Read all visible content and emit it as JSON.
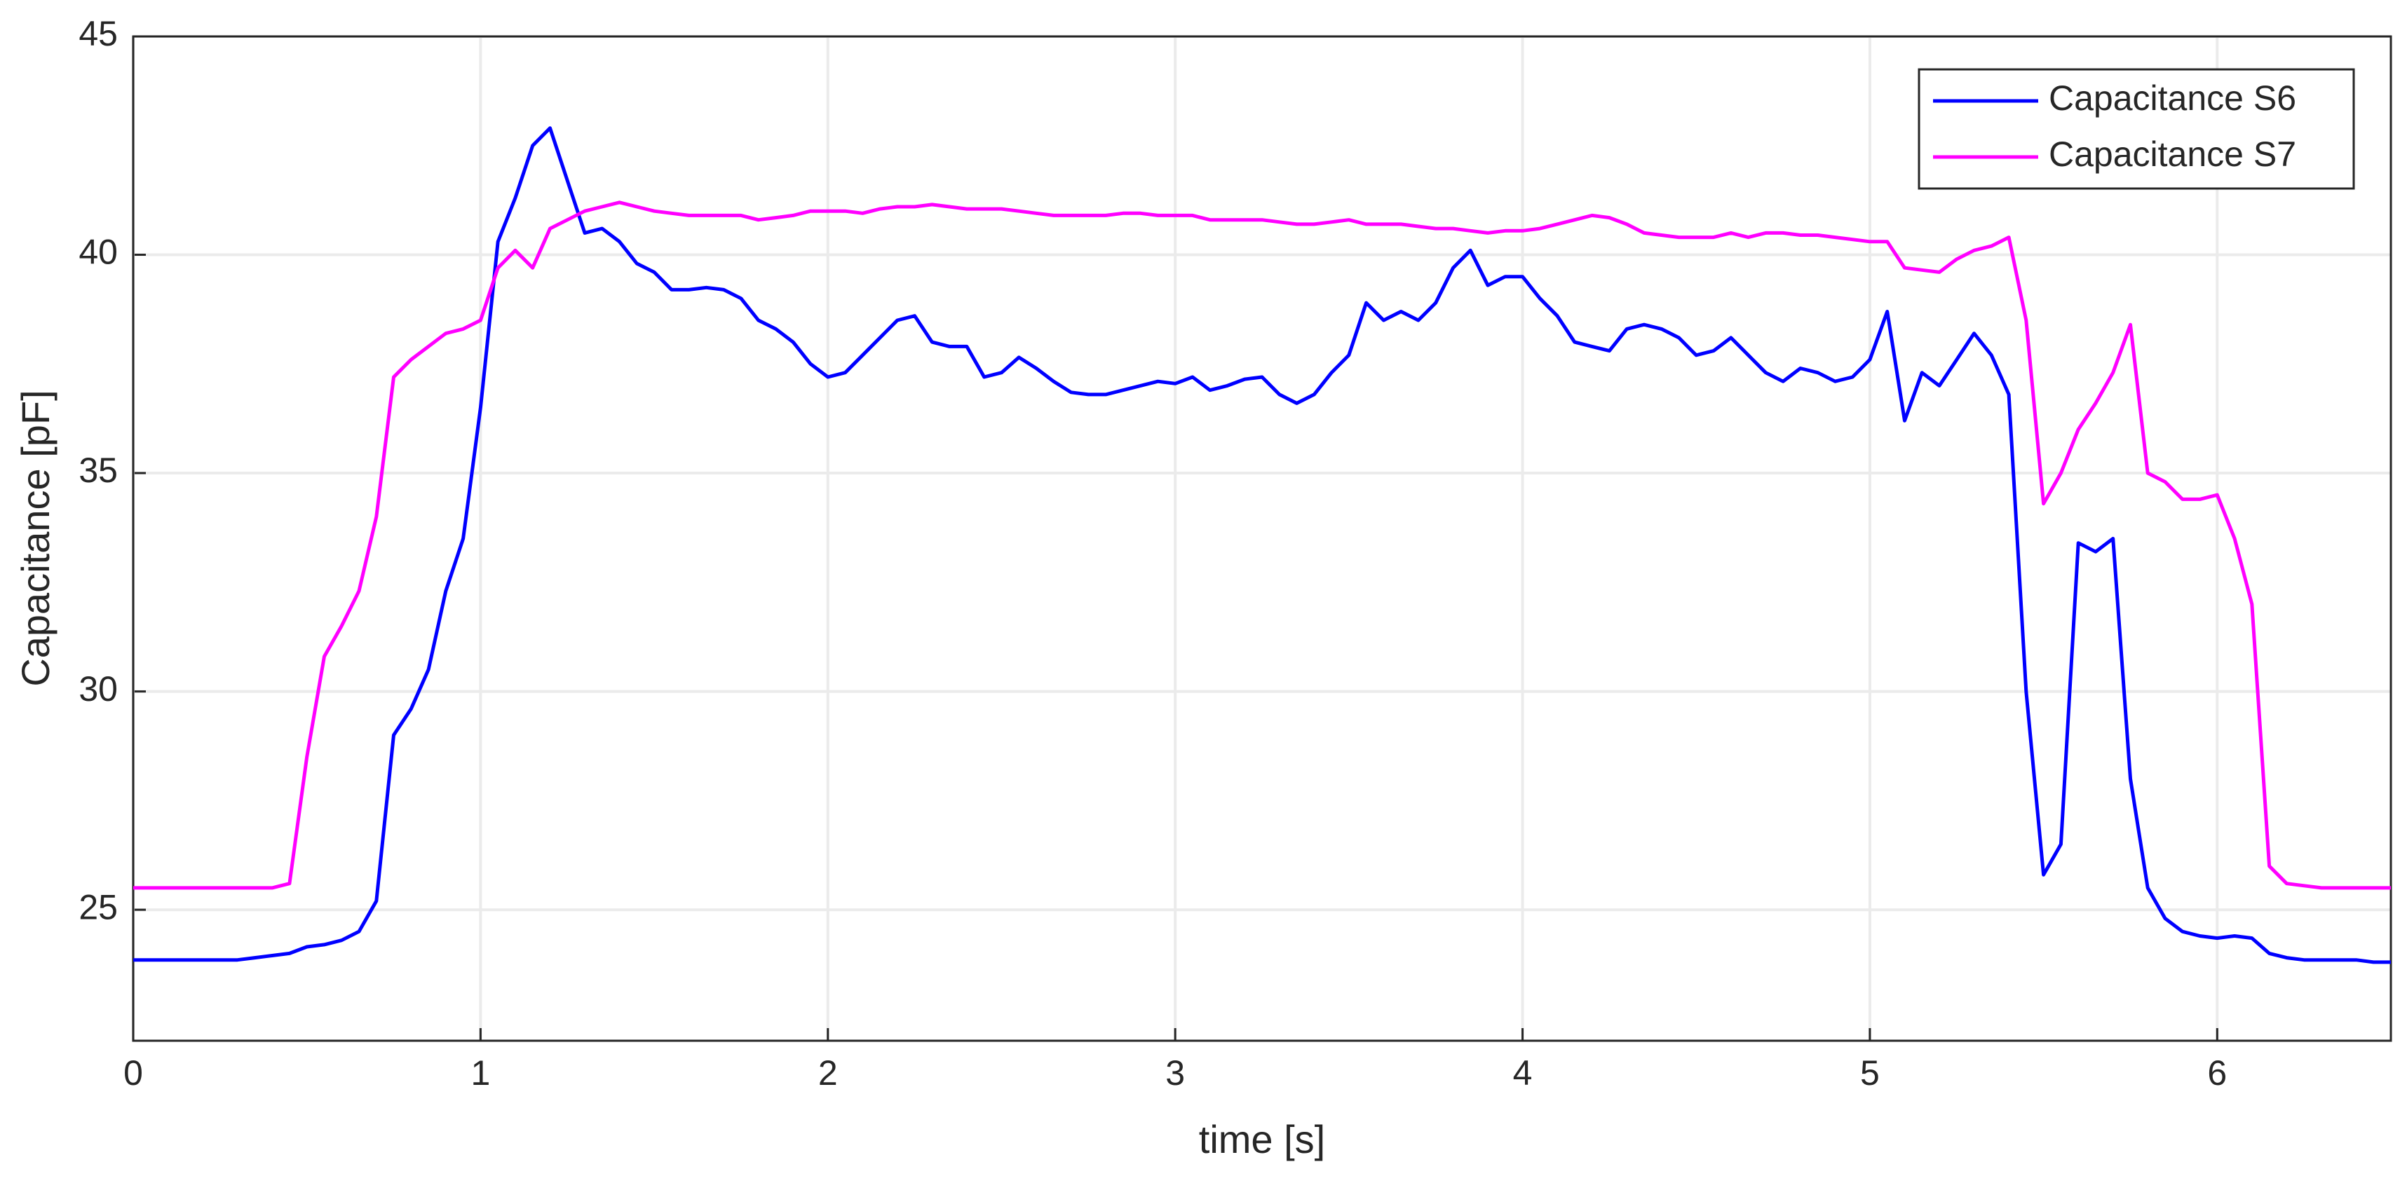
{
  "chart_data": {
    "type": "line",
    "xlabel": "time [s]",
    "ylabel": "Capacitance [pF]",
    "xlim": [
      0,
      6.5
    ],
    "ylim": [
      22,
      45
    ],
    "xticks": [
      0,
      1,
      2,
      3,
      4,
      5,
      6
    ],
    "yticks": [
      25,
      30,
      35,
      40,
      45
    ],
    "grid": true,
    "legend": "upper right",
    "x": [
      0,
      0.05,
      0.1,
      0.15,
      0.2,
      0.25,
      0.3,
      0.35,
      0.4,
      0.45,
      0.5,
      0.55,
      0.6,
      0.65,
      0.7,
      0.75,
      0.8,
      0.85,
      0.9,
      0.95,
      1,
      1.05,
      1.1,
      1.15,
      1.2,
      1.25,
      1.3,
      1.35,
      1.4,
      1.45,
      1.5,
      1.55,
      1.6,
      1.65,
      1.7,
      1.75,
      1.8,
      1.85,
      1.9,
      1.95,
      2,
      2.05,
      2.1,
      2.15,
      2.2,
      2.25,
      2.3,
      2.35,
      2.4,
      2.45,
      2.5,
      2.55,
      2.6,
      2.65,
      2.7,
      2.75,
      2.8,
      2.85,
      2.9,
      2.95,
      3,
      3.05,
      3.1,
      3.15,
      3.2,
      3.25,
      3.3,
      3.35,
      3.4,
      3.45,
      3.5,
      3.55,
      3.6,
      3.65,
      3.7,
      3.75,
      3.8,
      3.85,
      3.9,
      3.95,
      4,
      4.05,
      4.1,
      4.15,
      4.2,
      4.25,
      4.3,
      4.35,
      4.4,
      4.45,
      4.5,
      4.55,
      4.6,
      4.65,
      4.7,
      4.75,
      4.8,
      4.85,
      4.9,
      4.95,
      5,
      5.05,
      5.1,
      5.15,
      5.2,
      5.25,
      5.3,
      5.35,
      5.4,
      5.45,
      5.5,
      5.55,
      5.6,
      5.65,
      5.7,
      5.75,
      5.8,
      5.85,
      5.9,
      5.95,
      6,
      6.05,
      6.1,
      6.15,
      6.2,
      6.25,
      6.3,
      6.35,
      6.4,
      6.45,
      6.5
    ],
    "series": [
      {
        "name": "Capacitance S6",
        "color": "#0000ff",
        "values": [
          23.85,
          23.85,
          23.85,
          23.85,
          23.85,
          23.85,
          23.85,
          23.9,
          23.95,
          24.0,
          24.15,
          24.2,
          24.3,
          24.5,
          25.2,
          29.0,
          29.6,
          30.5,
          32.3,
          33.5,
          36.5,
          40.3,
          41.3,
          42.5,
          42.9,
          41.7,
          40.5,
          40.6,
          40.3,
          39.8,
          39.6,
          39.2,
          39.2,
          39.25,
          39.2,
          39.0,
          38.5,
          38.3,
          38.0,
          37.5,
          37.2,
          37.3,
          37.7,
          38.1,
          38.5,
          38.6,
          38.0,
          37.9,
          37.9,
          37.2,
          37.3,
          37.65,
          37.4,
          37.1,
          36.85,
          36.8,
          36.8,
          36.9,
          37.0,
          37.1,
          37.05,
          37.2,
          36.9,
          37.0,
          37.15,
          37.2,
          36.8,
          36.6,
          36.8,
          37.3,
          37.7,
          38.9,
          38.5,
          38.7,
          38.5,
          38.9,
          39.7,
          40.1,
          39.3,
          39.5,
          39.5,
          39.0,
          38.6,
          38.0,
          37.9,
          37.8,
          38.3,
          38.4,
          38.3,
          38.1,
          37.7,
          37.8,
          38.1,
          37.7,
          37.3,
          37.1,
          37.4,
          37.3,
          37.1,
          37.2,
          37.6,
          38.7,
          36.2,
          37.3,
          37.0,
          37.6,
          38.2,
          37.7,
          36.8,
          30.0,
          25.8,
          26.5,
          33.4,
          33.2,
          33.5,
          28.0,
          25.5,
          24.8,
          24.5,
          24.4,
          24.35,
          24.4,
          24.35,
          24.0,
          23.9,
          23.85,
          23.85,
          23.85,
          23.85,
          23.8,
          23.8
        ]
      },
      {
        "name": "Capacitance S7",
        "color": "#ff00ff",
        "values": [
          25.5,
          25.5,
          25.5,
          25.5,
          25.5,
          25.5,
          25.5,
          25.5,
          25.5,
          25.6,
          28.5,
          30.8,
          31.5,
          32.3,
          34.0,
          37.2,
          37.6,
          37.9,
          38.2,
          38.3,
          38.5,
          39.7,
          40.1,
          39.7,
          40.6,
          40.8,
          41.0,
          41.1,
          41.2,
          41.1,
          41.0,
          40.95,
          40.9,
          40.9,
          40.9,
          40.9,
          40.8,
          40.85,
          40.9,
          41.0,
          41.0,
          41.0,
          40.95,
          41.05,
          41.1,
          41.1,
          41.15,
          41.1,
          41.05,
          41.05,
          41.05,
          41.0,
          40.95,
          40.9,
          40.9,
          40.9,
          40.9,
          40.95,
          40.95,
          40.9,
          40.9,
          40.9,
          40.8,
          40.8,
          40.8,
          40.8,
          40.75,
          40.7,
          40.7,
          40.75,
          40.8,
          40.7,
          40.7,
          40.7,
          40.65,
          40.6,
          40.6,
          40.55,
          40.5,
          40.55,
          40.55,
          40.6,
          40.7,
          40.8,
          40.9,
          40.85,
          40.7,
          40.5,
          40.45,
          40.4,
          40.4,
          40.4,
          40.5,
          40.4,
          40.5,
          40.5,
          40.45,
          40.45,
          40.4,
          40.35,
          40.3,
          40.3,
          39.7,
          39.65,
          39.6,
          39.9,
          40.1,
          40.2,
          40.4,
          38.5,
          34.3,
          35.0,
          36.0,
          36.6,
          37.3,
          38.4,
          35.0,
          34.8,
          34.4,
          34.4,
          34.5,
          33.5,
          32.0,
          26.0,
          25.6,
          25.55,
          25.5,
          25.5,
          25.5,
          25.5,
          25.5
        ]
      }
    ]
  }
}
